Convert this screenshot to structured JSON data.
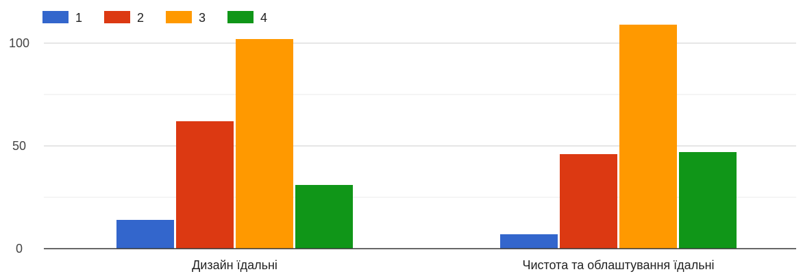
{
  "chart_data": {
    "type": "bar",
    "categories": [
      "Дизайн їдальні",
      "Чистота та облаштування їдальні"
    ],
    "series": [
      {
        "name": "1",
        "color": "#3366cc",
        "values": [
          14,
          7
        ]
      },
      {
        "name": "2",
        "color": "#dc3912",
        "values": [
          62,
          46
        ]
      },
      {
        "name": "3",
        "color": "#ff9900",
        "values": [
          102,
          109
        ]
      },
      {
        "name": "4",
        "color": "#109618",
        "values": [
          31,
          47
        ]
      }
    ],
    "yticks": [
      0,
      50,
      100
    ],
    "ylim": [
      0,
      100
    ],
    "grid": true,
    "legend_position": "top-left"
  }
}
